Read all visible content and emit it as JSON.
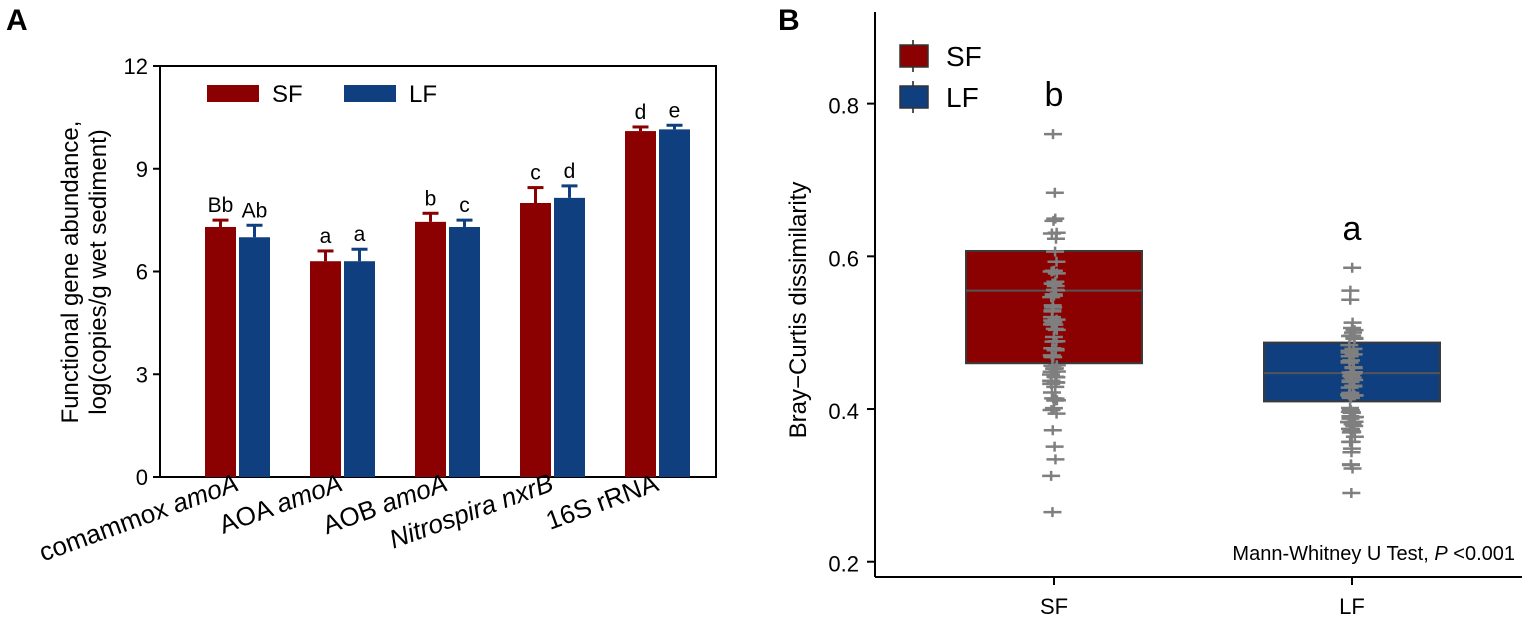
{
  "figure": {
    "panel_a_label": "A",
    "panel_b_label": "B"
  },
  "chart_data": [
    {
      "type": "bar",
      "panel": "A",
      "ylabel_line1": "Functional gene abundance,",
      "ylabel_line2": "log(copies/g wet sediment)",
      "ylim": [
        0,
        12
      ],
      "yticks": [
        0,
        3,
        6,
        9,
        12
      ],
      "categories": [
        {
          "prefix": "comammox ",
          "gene": "amoA"
        },
        {
          "prefix": "AOA ",
          "gene": "amoA"
        },
        {
          "prefix": "AOB ",
          "gene": "amoA"
        },
        {
          "prefix": "Nitrospira ",
          "gene": "nxrB",
          "prefix_italic": true
        },
        {
          "prefix": "16S rRNA",
          "gene": ""
        }
      ],
      "series": [
        {
          "name": "SF",
          "color": "#8b0000",
          "values": [
            7.3,
            6.3,
            7.45,
            8.0,
            10.1
          ],
          "errors": [
            0.2,
            0.3,
            0.25,
            0.45,
            0.12
          ],
          "letters": [
            "Bb",
            "a",
            "b",
            "c",
            "d"
          ]
        },
        {
          "name": "LF",
          "color": "#0f3f7f",
          "values": [
            7.0,
            6.3,
            7.3,
            8.15,
            10.15
          ],
          "errors": [
            0.35,
            0.35,
            0.2,
            0.35,
            0.12
          ],
          "letters": [
            "Ab",
            "a",
            "c",
            "d",
            "e"
          ]
        }
      ],
      "legend_position": "top-left"
    },
    {
      "type": "box",
      "panel": "B",
      "ylabel": "Bray−Curtis dissimilarity",
      "ylim": [
        0.18,
        0.92
      ],
      "yticks": [
        "0.2",
        "0.4",
        "0.6",
        "0.8"
      ],
      "annotation_prefix": "Mann-Whitney U Test, ",
      "annotation_p": "P",
      "annotation_suffix": " <0.001",
      "legend_position": "top-left",
      "groups": [
        {
          "name": "SF",
          "color": "#8b0000",
          "q1": 0.46,
          "median": 0.555,
          "q3": 0.607,
          "min": 0.265,
          "max": 0.76,
          "letter": "b"
        },
        {
          "name": "LF",
          "color": "#0f3f7f",
          "q1": 0.41,
          "median": 0.447,
          "q3": 0.487,
          "min": 0.29,
          "max": 0.585,
          "letter": "a"
        }
      ]
    }
  ]
}
